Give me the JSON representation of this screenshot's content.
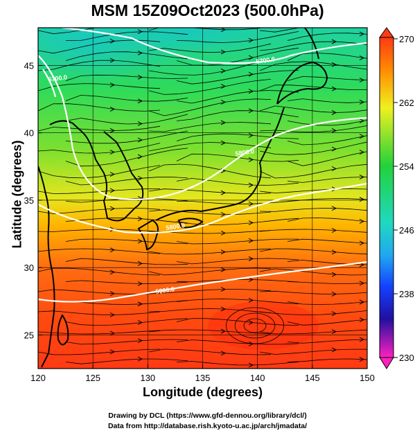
{
  "title": "MSM 15Z09Oct2023 (500.0hPa)",
  "x_axis": {
    "label": "Longitude (degrees)",
    "ticks": [
      "120",
      "125",
      "130",
      "135",
      "140",
      "145",
      "150"
    ]
  },
  "y_axis": {
    "label": "Latitude  (degrees)",
    "ticks": [
      "25",
      "30",
      "35",
      "40",
      "45"
    ]
  },
  "colorbar": {
    "ticks": [
      "270",
      "262",
      "254",
      "246",
      "238",
      "230"
    ]
  },
  "contours": [
    {
      "label": "5700.0",
      "level": 5700
    },
    {
      "label": "5800.0",
      "level": 5800
    },
    {
      "label": "5700.0",
      "level": 5700
    },
    {
      "label": "5800.0",
      "level": 5800
    },
    {
      "label": "5900.0",
      "level": 5900
    }
  ],
  "credits": {
    "line1": "Drawing by DCL (https://www.gfd-dennou.org/library/dcl/)",
    "line2": "Data from http://database.rish.kyoto-u.ac.jp/arch/jmadata/"
  },
  "colors": {
    "cold": "#1ec3a8",
    "mid": "#3cd23c",
    "warm": "#f0e020",
    "hot": "#ff3a1a",
    "contour": "#ffffff",
    "streamline": "#000000"
  }
}
